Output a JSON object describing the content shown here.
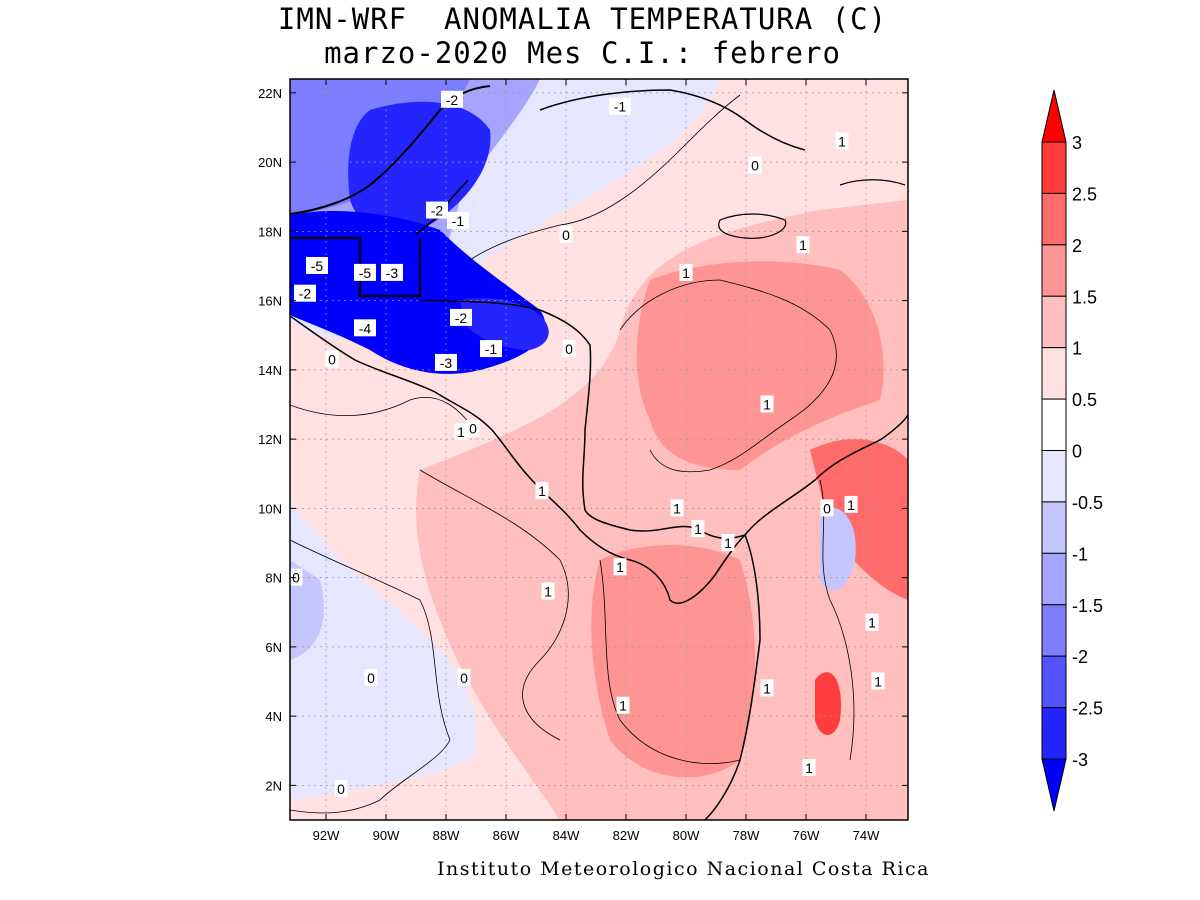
{
  "title": {
    "line1": "IMN-WRF  ANOMALIA TEMPERATURA (C)",
    "line2": "marzo-2020 Mes C.I.: febrero"
  },
  "footer": "Instituto Meteorologico Nacional Costa Rica",
  "map": {
    "lon_range": [
      -93.2,
      -72.6
    ],
    "lat_range": [
      1.0,
      22.4
    ],
    "lat_ticks": [
      {
        "value": 2,
        "label": "2N"
      },
      {
        "value": 4,
        "label": "4N"
      },
      {
        "value": 6,
        "label": "6N"
      },
      {
        "value": 8,
        "label": "8N"
      },
      {
        "value": 10,
        "label": "10N"
      },
      {
        "value": 12,
        "label": "12N"
      },
      {
        "value": 14,
        "label": "14N"
      },
      {
        "value": 16,
        "label": "16N"
      },
      {
        "value": 18,
        "label": "18N"
      },
      {
        "value": 20,
        "label": "20N"
      },
      {
        "value": 22,
        "label": "22N"
      }
    ],
    "lon_ticks": [
      {
        "value": -92,
        "label": "92W"
      },
      {
        "value": -90,
        "label": "90W"
      },
      {
        "value": -88,
        "label": "88W"
      },
      {
        "value": -86,
        "label": "86W"
      },
      {
        "value": -84,
        "label": "84W"
      },
      {
        "value": -82,
        "label": "82W"
      },
      {
        "value": -80,
        "label": "80W"
      },
      {
        "value": -78,
        "label": "78W"
      },
      {
        "value": -76,
        "label": "76W"
      },
      {
        "value": -74,
        "label": "74W"
      }
    ],
    "contour_labels": [
      {
        "text": "-2",
        "lon": -87.8,
        "lat": 21.8
      },
      {
        "text": "-1",
        "lon": -82.2,
        "lat": 21.6
      },
      {
        "text": "1",
        "lon": -74.8,
        "lat": 20.6
      },
      {
        "text": "0",
        "lon": -77.7,
        "lat": 19.9
      },
      {
        "text": "-2",
        "lon": -88.3,
        "lat": 18.6
      },
      {
        "text": "-1",
        "lon": -87.6,
        "lat": 18.3
      },
      {
        "text": "0",
        "lon": -84.0,
        "lat": 17.9
      },
      {
        "text": "1",
        "lon": -76.1,
        "lat": 17.6
      },
      {
        "text": "1",
        "lon": -80.0,
        "lat": 16.8
      },
      {
        "text": "-5",
        "lon": -92.3,
        "lat": 17.0
      },
      {
        "text": "-5",
        "lon": -90.7,
        "lat": 16.8
      },
      {
        "text": "-3",
        "lon": -89.8,
        "lat": 16.8
      },
      {
        "text": "-2",
        "lon": -92.7,
        "lat": 16.2
      },
      {
        "text": "-2",
        "lon": -87.5,
        "lat": 15.5
      },
      {
        "text": "-4",
        "lon": -90.7,
        "lat": 15.2
      },
      {
        "text": "-1",
        "lon": -86.5,
        "lat": 14.6
      },
      {
        "text": "0",
        "lon": -83.9,
        "lat": 14.6
      },
      {
        "text": "0",
        "lon": -91.8,
        "lat": 14.3
      },
      {
        "text": "-3",
        "lon": -88.0,
        "lat": 14.2
      },
      {
        "text": "1",
        "lon": -77.3,
        "lat": 13.0
      },
      {
        "text": "1",
        "lon": -87.5,
        "lat": 12.2
      },
      {
        "text": "0",
        "lon": -87.1,
        "lat": 12.3
      },
      {
        "text": "1",
        "lon": -84.8,
        "lat": 10.5
      },
      {
        "text": "1",
        "lon": -80.3,
        "lat": 10.0
      },
      {
        "text": "0",
        "lon": -75.3,
        "lat": 10.0
      },
      {
        "text": "1",
        "lon": -74.5,
        "lat": 10.1
      },
      {
        "text": "1",
        "lon": -79.6,
        "lat": 9.4
      },
      {
        "text": "1",
        "lon": -78.6,
        "lat": 9.0
      },
      {
        "text": "1",
        "lon": -82.2,
        "lat": 8.3
      },
      {
        "text": "0",
        "lon": -93.0,
        "lat": 8.0
      },
      {
        "text": "1",
        "lon": -84.6,
        "lat": 7.6
      },
      {
        "text": "1",
        "lon": -73.8,
        "lat": 6.7
      },
      {
        "text": "0",
        "lon": -90.5,
        "lat": 5.1
      },
      {
        "text": "0",
        "lon": -87.4,
        "lat": 5.1
      },
      {
        "text": "1",
        "lon": -73.6,
        "lat": 5.0
      },
      {
        "text": "1",
        "lon": -77.3,
        "lat": 4.8
      },
      {
        "text": "1",
        "lon": -82.1,
        "lat": 4.3
      },
      {
        "text": "1",
        "lon": -75.9,
        "lat": 2.5
      },
      {
        "text": "0",
        "lon": -91.5,
        "lat": 1.9
      }
    ]
  },
  "colorbar": {
    "labels": [
      "3",
      "2.5",
      "2",
      "1.5",
      "1",
      "0.5",
      "0",
      "-0.5",
      "-1",
      "-1.5",
      "-2",
      "-2.5",
      "-3"
    ],
    "colors": [
      "#ff0000",
      "#ff3d3d",
      "#ff6a6a",
      "#ff9494",
      "#ffbfbf",
      "#ffe1e1",
      "#ffffff",
      "#e6e6ff",
      "#c6c6ff",
      "#a5a5ff",
      "#7d7dff",
      "#5353ff",
      "#2424ff",
      "#0000ff"
    ]
  }
}
